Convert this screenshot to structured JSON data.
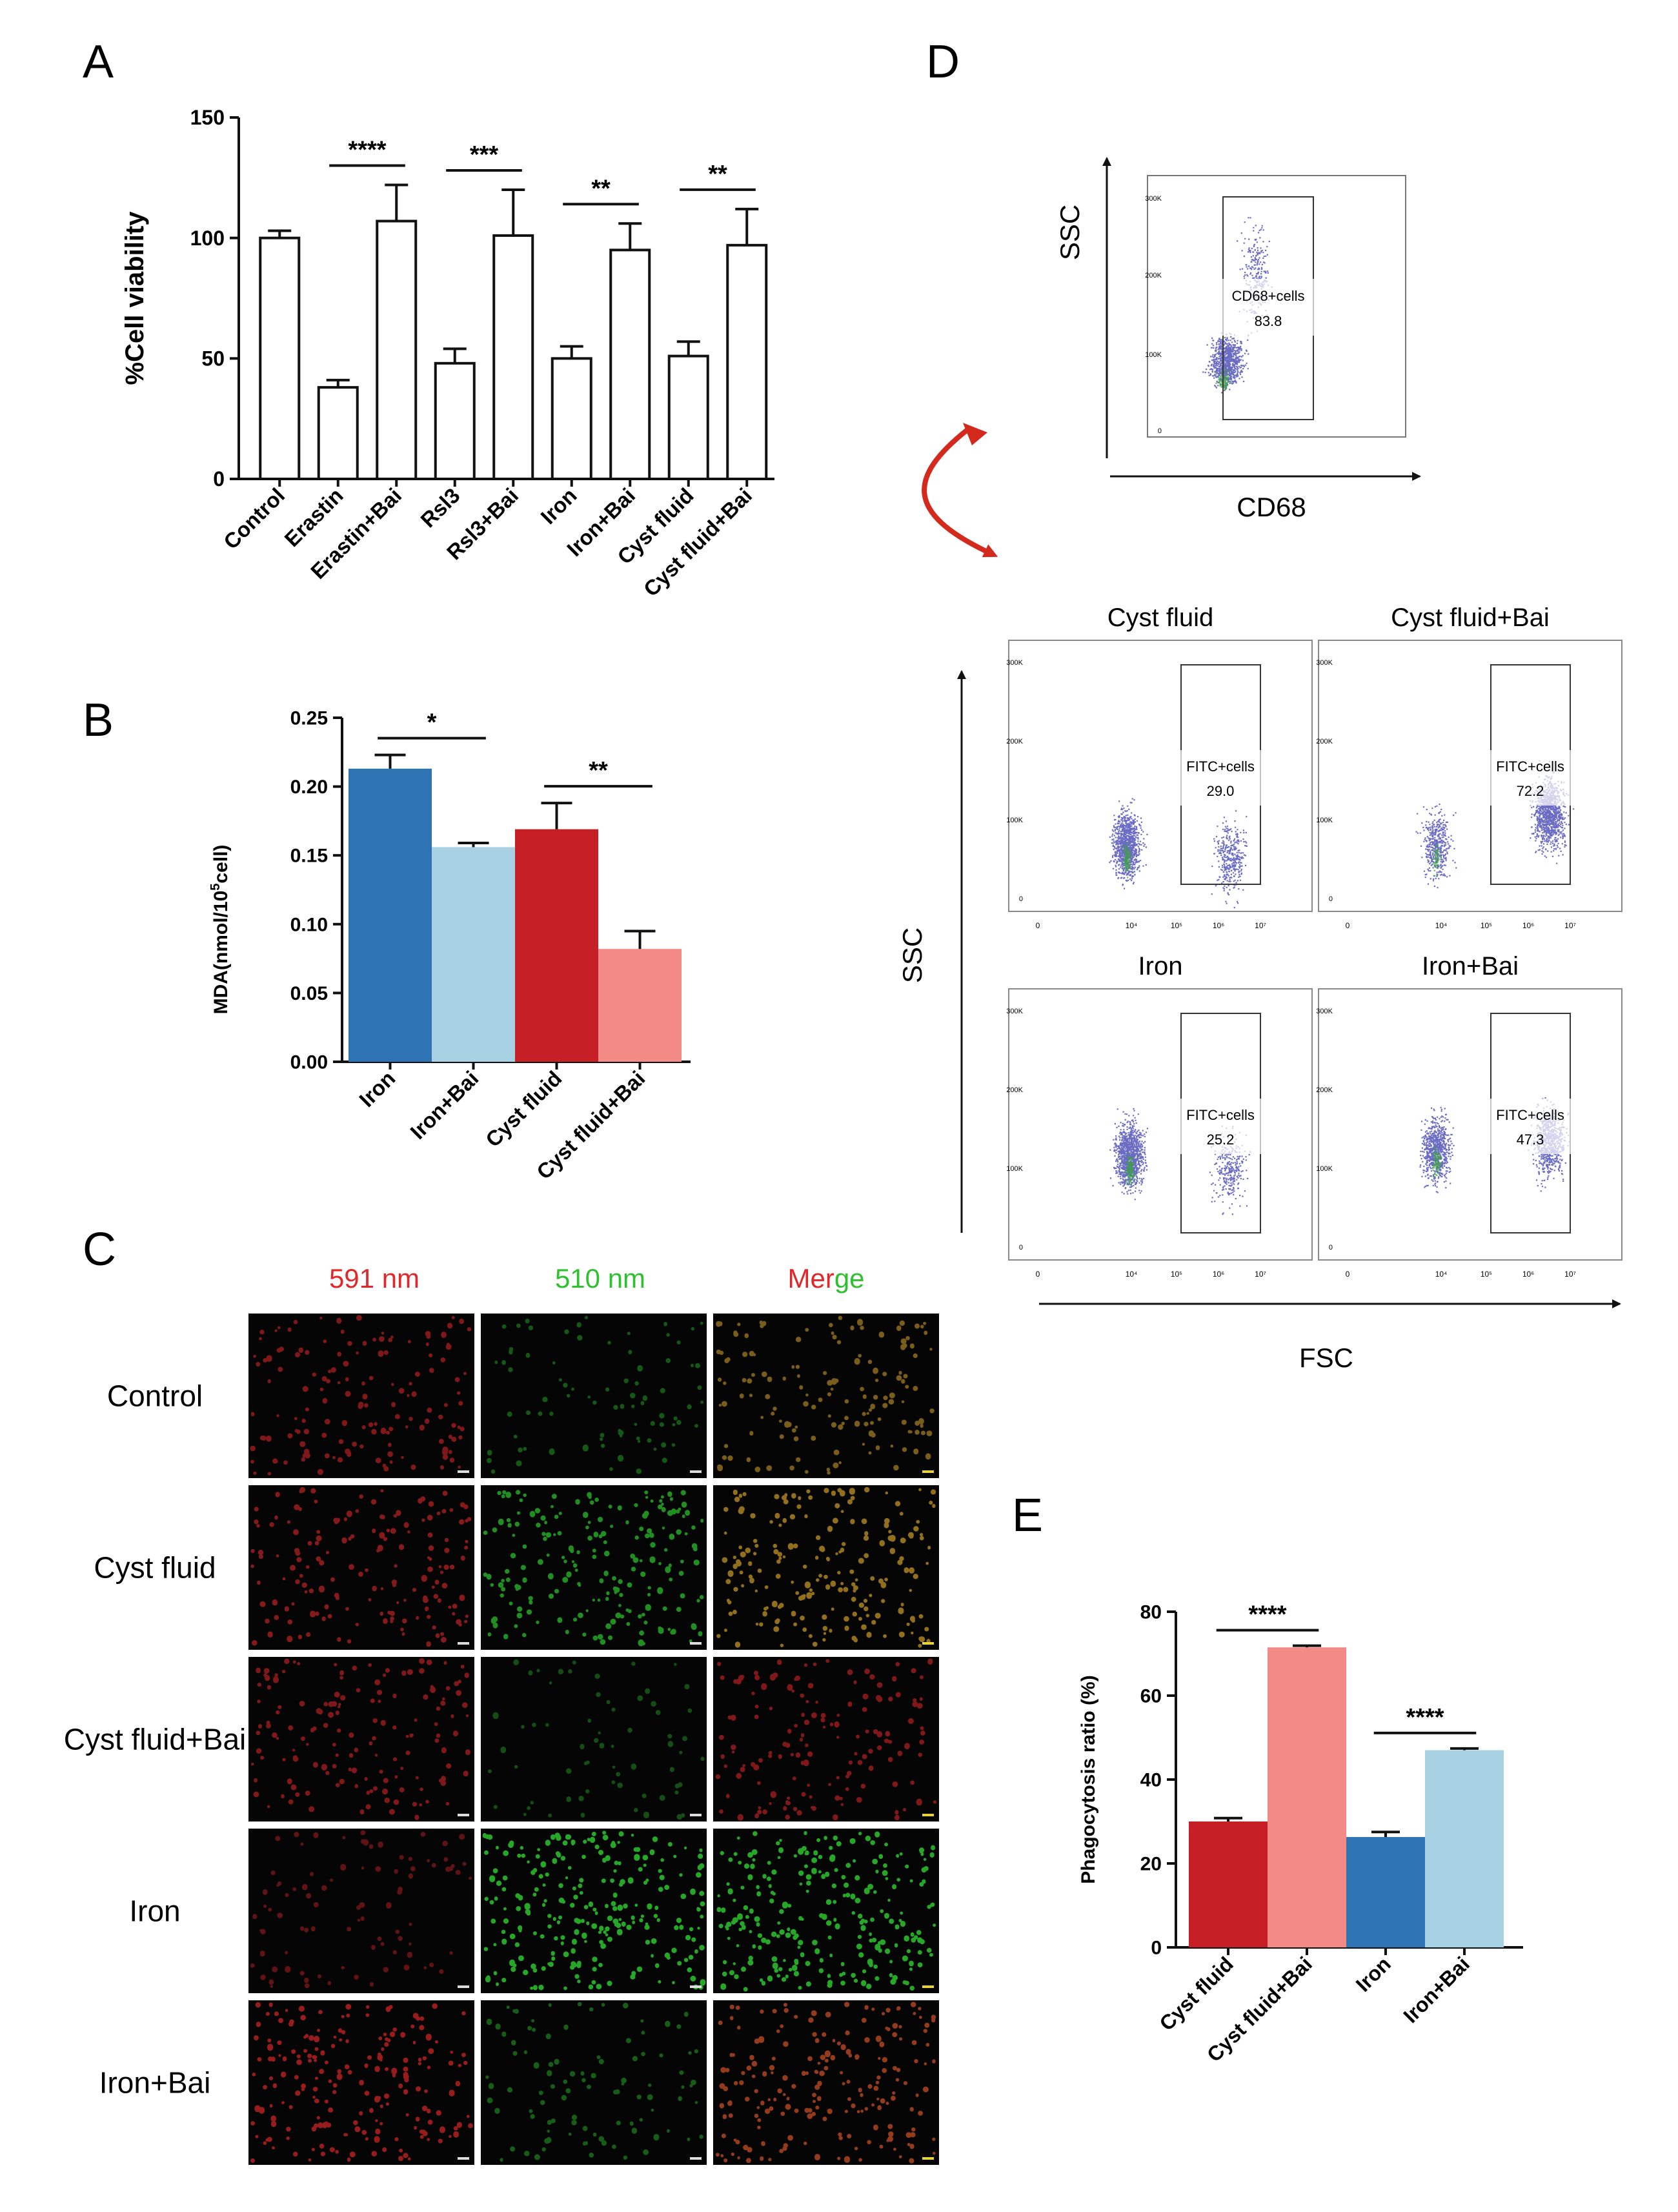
{
  "colors": {
    "dark_blue": "#2e74b5",
    "light_blue": "#a8d2e4",
    "dark_red": "#c62026",
    "light_red": "#f48a86",
    "axis": "#111111",
    "scatter_blue": "#3a3ab0",
    "scatter_green": "#3aa63a",
    "fluor_red": "#e0282a",
    "fluor_green": "#2fd02f",
    "fluor_orange": "#d6a22a",
    "arrow_red": "#d42a1e"
  },
  "panel_labels": {
    "A": "A",
    "B": "B",
    "C": "C",
    "D": "D",
    "E": "E"
  },
  "chart_data": [
    {
      "id": "A",
      "type": "bar",
      "ylabel": "%Cell viability",
      "ylim": [
        0,
        150
      ],
      "yticks": [
        "0",
        "50",
        "100",
        "150"
      ],
      "categories": [
        "Control",
        "Erastin",
        "Erastin+Bai",
        "Rsl3",
        "Rsl3+Bai",
        "Iron",
        "Iron+Bai",
        "Cyst fluid",
        "Cyst fluid+Bai"
      ],
      "values": [
        100,
        38,
        107,
        48,
        101,
        50,
        95,
        51,
        97
      ],
      "errors": [
        3,
        3,
        15,
        6,
        19,
        5,
        11,
        6,
        15
      ],
      "significance": [
        {
          "from": 1,
          "to": 2,
          "label": "****"
        },
        {
          "from": 3,
          "to": 4,
          "label": "***"
        },
        {
          "from": 5,
          "to": 6,
          "label": "**"
        },
        {
          "from": 7,
          "to": 8,
          "label": "**"
        }
      ]
    },
    {
      "id": "B",
      "type": "bar",
      "ylabel_main": "MDA(nmol/10",
      "ylabel_sup": "5",
      "ylabel_tail": "cell)",
      "ylim": [
        0,
        0.25
      ],
      "yticks": [
        "0.00",
        "0.05",
        "0.10",
        "0.15",
        "0.20",
        "0.25"
      ],
      "categories": [
        "Iron",
        "Iron+Bai",
        "Cyst fluid",
        "Cyst fluid+Bai"
      ],
      "values": [
        0.213,
        0.156,
        0.169,
        0.082
      ],
      "errors": [
        0.01,
        0.003,
        0.019,
        0.013
      ],
      "bar_colors": [
        "dark_blue",
        "light_blue",
        "dark_red",
        "light_red"
      ],
      "significance": [
        {
          "from": 0,
          "to": 1,
          "label": "*"
        },
        {
          "from": 2,
          "to": 3,
          "label": "**"
        }
      ]
    },
    {
      "id": "E",
      "type": "bar",
      "ylabel": "Phagocytosis ratio (%)",
      "ylim": [
        0,
        80
      ],
      "yticks": [
        "0",
        "20",
        "40",
        "60",
        "80"
      ],
      "categories": [
        "Cyst fluid",
        "Cyst fluid+Bai",
        "Iron",
        "Iron+Bai"
      ],
      "values": [
        30,
        71.5,
        26.3,
        47
      ],
      "errors": [
        0.8,
        0.4,
        1.2,
        0.4
      ],
      "bar_colors": [
        "dark_red",
        "light_red",
        "dark_blue",
        "light_blue"
      ],
      "significance": [
        {
          "from": 0,
          "to": 1,
          "label": "****"
        },
        {
          "from": 2,
          "to": 3,
          "label": "****"
        }
      ]
    }
  ],
  "panel_c": {
    "column_headers": [
      "591 nm",
      "510 nm"
    ],
    "merge_parts": [
      "Mer",
      "ge"
    ],
    "rows": [
      {
        "label": "Control",
        "red": 0.35,
        "green": 0.1,
        "merge": "orange"
      },
      {
        "label": "Cyst fluid",
        "red": 0.4,
        "green": 0.55,
        "merge": "orange"
      },
      {
        "label": "Cyst fluid+Bai",
        "red": 0.35,
        "green": 0.02,
        "merge": "red"
      },
      {
        "label": "Iron",
        "red": 0.12,
        "green": 0.75,
        "merge": "green"
      },
      {
        "label": "Iron+Bai",
        "red": 0.55,
        "green": 0.15,
        "merge": "orangered"
      }
    ]
  },
  "panel_d": {
    "top": {
      "y_axis": "SSC",
      "x_axis": "CD68",
      "gate_label": "CD68+cells",
      "gate_value": "83.8",
      "y_ticks": [
        "300K",
        "200K",
        "100K",
        "0"
      ]
    },
    "grid_y_axis": "SSC",
    "grid_x_axis": "FSC",
    "plots": [
      {
        "title": "Cyst fluid",
        "gate_label": "FITC+cells",
        "gate_value": "29.0"
      },
      {
        "title": "Cyst fluid+Bai",
        "gate_label": "FITC+cells",
        "gate_value": "72.2"
      },
      {
        "title": "Iron",
        "gate_label": "FITC+cells",
        "gate_value": "25.2"
      },
      {
        "title": "Iron+Bai",
        "gate_label": "FITC+cells",
        "gate_value": "47.3"
      }
    ],
    "small_ticks_y": [
      "300K",
      "200K",
      "100K",
      "0"
    ],
    "small_ticks_x": [
      "0",
      "10⁴",
      "10⁵",
      "10⁶",
      "10⁷"
    ]
  }
}
